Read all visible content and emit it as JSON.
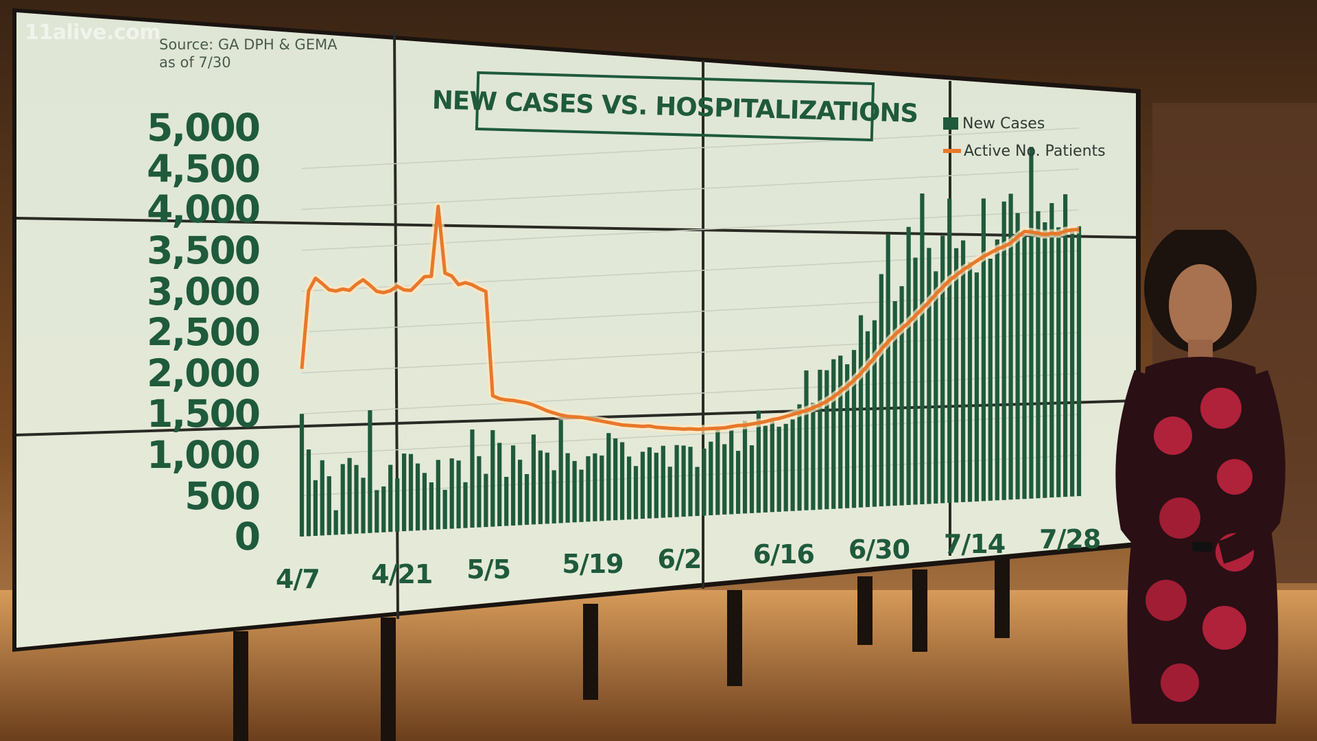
{
  "brand": "11alive.com",
  "source": {
    "line1": "Source: GA DPH & GEMA",
    "line2": "as of 7/30"
  },
  "chart_data": {
    "type": "bar",
    "title": "NEW CASES VS. HOSPITALIZATIONS",
    "xlabel": "",
    "ylabel": "",
    "ylim": [
      0,
      5000
    ],
    "yticks": [
      "5,000",
      "4,500",
      "4,000",
      "3,500",
      "3,000",
      "2,500",
      "2,000",
      "1,500",
      "1,000",
      "500",
      "0"
    ],
    "xticks": [
      "4/7",
      "4/21",
      "5/5",
      "5/19",
      "6/2",
      "6/16",
      "6/30",
      "7/14",
      "7/28"
    ],
    "grid": true,
    "legend": "top-right",
    "x": [
      "4/7",
      "4/8",
      "4/9",
      "4/10",
      "4/11",
      "4/12",
      "4/13",
      "4/14",
      "4/15",
      "4/16",
      "4/17",
      "4/18",
      "4/19",
      "4/20",
      "4/21",
      "4/22",
      "4/23",
      "4/24",
      "4/25",
      "4/26",
      "4/27",
      "4/28",
      "4/29",
      "4/30",
      "5/1",
      "5/2",
      "5/3",
      "5/4",
      "5/5",
      "5/6",
      "5/7",
      "5/8",
      "5/9",
      "5/10",
      "5/11",
      "5/12",
      "5/13",
      "5/14",
      "5/15",
      "5/16",
      "5/17",
      "5/18",
      "5/19",
      "5/20",
      "5/21",
      "5/22",
      "5/23",
      "5/24",
      "5/25",
      "5/26",
      "5/27",
      "5/28",
      "5/29",
      "5/30",
      "5/31",
      "6/1",
      "6/2",
      "6/3",
      "6/4",
      "6/5",
      "6/6",
      "6/7",
      "6/8",
      "6/9",
      "6/10",
      "6/11",
      "6/12",
      "6/13",
      "6/14",
      "6/15",
      "6/16",
      "6/17",
      "6/18",
      "6/19",
      "6/20",
      "6/21",
      "6/22",
      "6/23",
      "6/24",
      "6/25",
      "6/26",
      "6/27",
      "6/28",
      "6/29",
      "6/30",
      "7/1",
      "7/2",
      "7/3",
      "7/4",
      "7/5",
      "7/6",
      "7/7",
      "7/8",
      "7/9",
      "7/10",
      "7/11",
      "7/12",
      "7/13",
      "7/14",
      "7/15",
      "7/16",
      "7/17",
      "7/18",
      "7/19",
      "7/20",
      "7/21",
      "7/22",
      "7/23",
      "7/24",
      "7/25",
      "7/26",
      "7/27",
      "7/28",
      "7/29",
      "7/30"
    ],
    "series": [
      {
        "name": "New Cases",
        "color": "#1f5a3c",
        "values": [
          1500,
          1060,
          680,
          920,
          720,
          300,
          860,
          930,
          840,
          680,
          1500,
          520,
          560,
          820,
          650,
          950,
          940,
          820,
          700,
          580,
          850,
          480,
          860,
          830,
          560,
          1200,
          870,
          650,
          1180,
          1020,
          600,
          980,
          800,
          620,
          1100,
          900,
          870,
          650,
          1260,
          850,
          750,
          640,
          800,
          830,
          800,
          1070,
          1000,
          950,
          770,
          650,
          820,
          870,
          800,
          880,
          620,
          880,
          870,
          850,
          600,
          820,
          900,
          1050,
          860,
          1030,
          770,
          1130,
          830,
          1250,
          1060,
          1130,
          1040,
          1070,
          1120,
          1300,
          1710,
          1310,
          1710,
          1700,
          1830,
          1870,
          1760,
          1930,
          2350,
          2150,
          2280,
          2840,
          3320,
          2500,
          2680,
          3400,
          3020,
          3800,
          3130,
          2840,
          3270,
          3720,
          3110,
          3200,
          2930,
          2800,
          3700,
          2960,
          3190,
          3650,
          3740,
          3500,
          3210,
          4300,
          3510,
          3370,
          3600,
          3300,
          3700,
          3250,
          3300
        ],
        "xticks_extra": []
      },
      {
        "name": "Active No. Patients",
        "color": "#e8782a",
        "values": [
          2050,
          3000,
          3150,
          3080,
          3000,
          2980,
          3000,
          2980,
          3050,
          3100,
          3030,
          2950,
          2930,
          2950,
          3000,
          2950,
          2940,
          3020,
          3100,
          3100,
          3950,
          3130,
          3090,
          2980,
          3000,
          2970,
          2920,
          2880,
          1600,
          1560,
          1540,
          1530,
          1510,
          1490,
          1460,
          1420,
          1380,
          1350,
          1320,
          1300,
          1290,
          1280,
          1260,
          1240,
          1220,
          1200,
          1180,
          1160,
          1150,
          1140,
          1130,
          1130,
          1110,
          1100,
          1090,
          1080,
          1070,
          1070,
          1060,
          1060,
          1060,
          1060,
          1060,
          1070,
          1080,
          1080,
          1090,
          1100,
          1110,
          1130,
          1140,
          1160,
          1180,
          1200,
          1220,
          1250,
          1280,
          1320,
          1370,
          1430,
          1490,
          1560,
          1640,
          1730,
          1820,
          1920,
          2010,
          2090,
          2160,
          2230,
          2310,
          2390,
          2470,
          2560,
          2640,
          2720,
          2780,
          2840,
          2890,
          2940,
          2990,
          3030,
          3070,
          3100,
          3140,
          3210,
          3270,
          3260,
          3240,
          3220,
          3230,
          3220,
          3250,
          3260,
          3260
        ]
      }
    ]
  }
}
